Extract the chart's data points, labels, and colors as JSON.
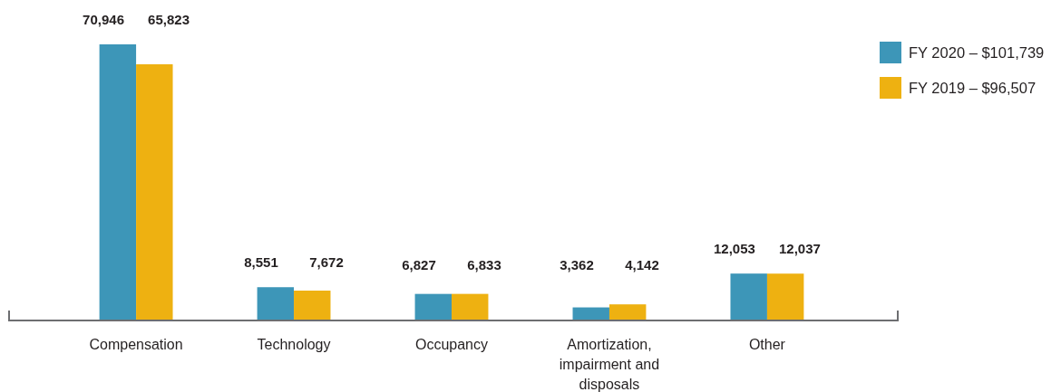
{
  "chart_data": {
    "type": "bar",
    "categories": [
      "Compensation",
      "Technology",
      "Occupancy",
      "Amortization, impairment and disposals",
      "Other"
    ],
    "series": [
      {
        "name": "FY 2020 – $101,739",
        "color": "#3d96b8",
        "values": [
          70946,
          8551,
          6827,
          3362,
          12053
        ],
        "value_labels": [
          "70,946",
          "8,551",
          "6,827",
          "3,362",
          "12,053"
        ]
      },
      {
        "name": "FY 2019 – $96,507",
        "color": "#eeb111",
        "values": [
          65823,
          7672,
          6833,
          4142,
          12037
        ],
        "value_labels": [
          "65,823",
          "7,672",
          "6,833",
          "4,142",
          "12,037"
        ]
      }
    ],
    "legend": "top right"
  }
}
